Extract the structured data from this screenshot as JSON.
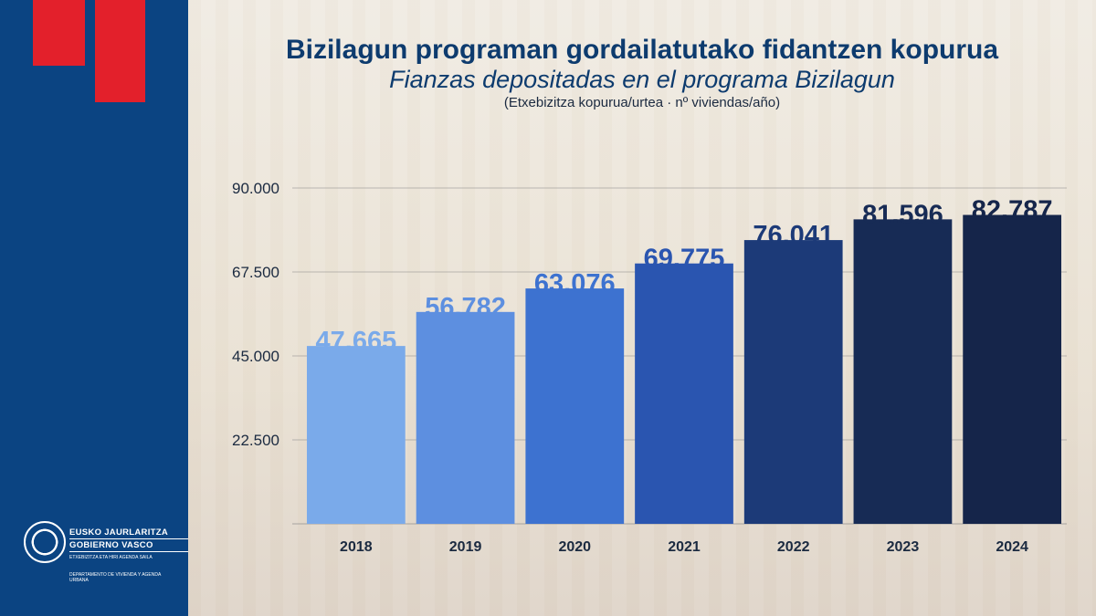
{
  "title": "Bizilagun programan gordailatutako fidantzen kopurua",
  "subtitle_es": "Fianzas depositadas en el programa Bizilagun",
  "unit_note": "(Etxebizitza kopurua/urtea · nº viviendas/año)",
  "logo": {
    "line1": "EUSKO JAURLARITZA",
    "line2": "GOBIERNO VASCO",
    "dept_eu": "ETXEBIZITZA ETA HIRI AGENDA SAILA",
    "dept_es": "DEPARTAMENTO DE VIVIENDA Y AGENDA URBANA"
  },
  "colors": {
    "sidebar": "#0b4482",
    "accent_red": "#e3202b",
    "title": "#0d3b6e",
    "bars": [
      "#7aaaea",
      "#5d8fe0",
      "#3d72d0",
      "#2a55b0",
      "#1c3a78",
      "#172b55",
      "#15254a"
    ]
  },
  "chart_data": {
    "type": "bar",
    "categories": [
      "2018",
      "2019",
      "2020",
      "2021",
      "2022",
      "2023",
      "2024"
    ],
    "values": [
      47665,
      56782,
      63076,
      69775,
      76041,
      81596,
      82787
    ],
    "value_labels": [
      "47.665",
      "56.782",
      "63.076",
      "69.775",
      "76.041",
      "81.596",
      "82.787"
    ],
    "ylim": [
      0,
      90000
    ],
    "yticks": [
      22500,
      45000,
      67500,
      90000
    ],
    "ytick_labels": [
      "22.500",
      "45.000",
      "67.500",
      "90.000"
    ],
    "grid": true,
    "legend": "none",
    "xlabel": "",
    "ylabel": ""
  }
}
